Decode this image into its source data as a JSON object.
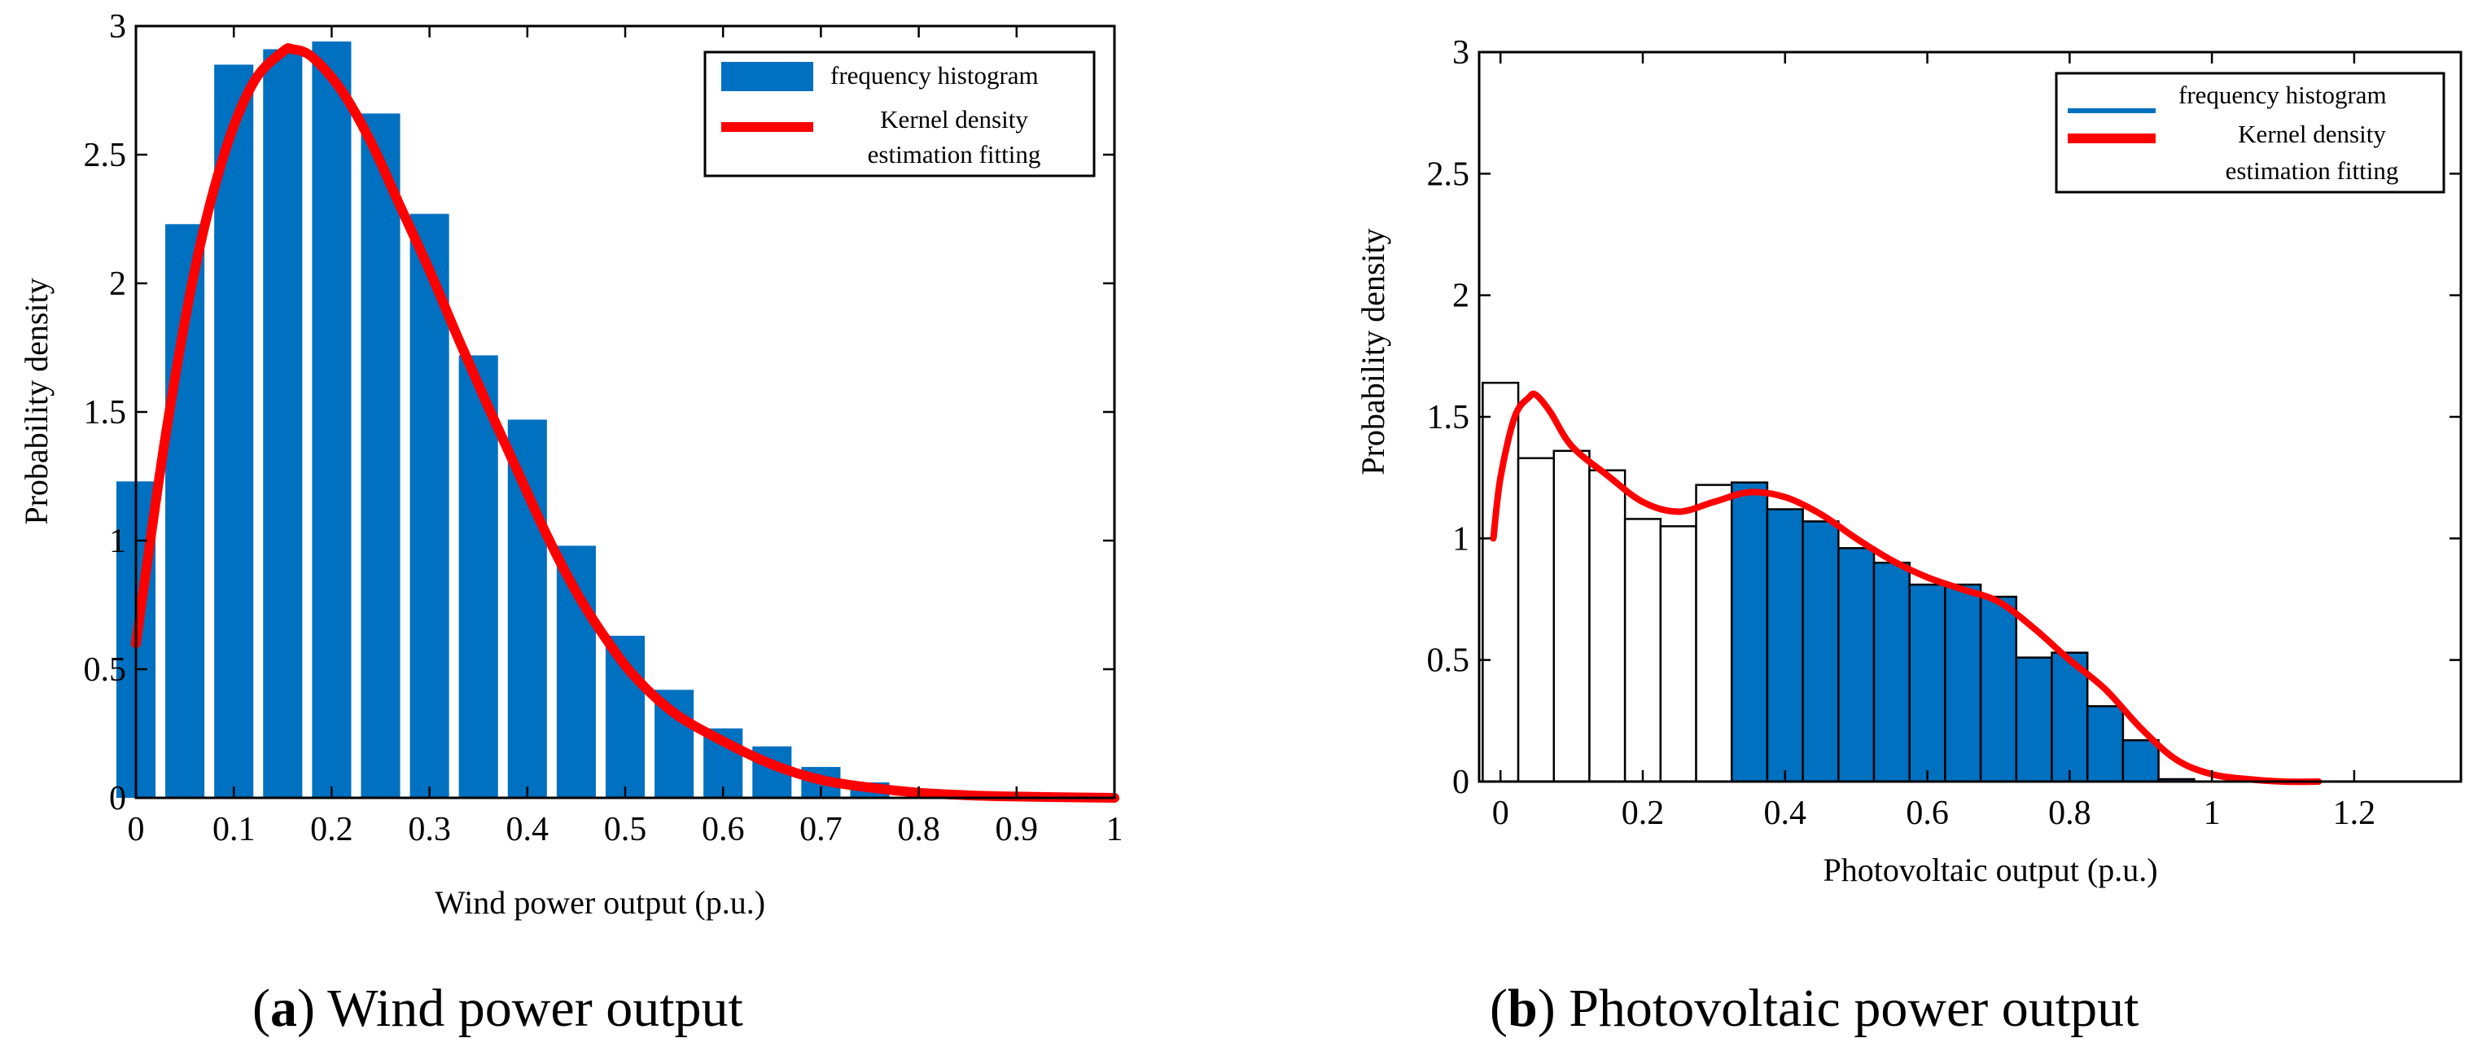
{
  "chart_data": [
    {
      "type": "bar",
      "panel_letter": "a",
      "caption": "Wind power output",
      "xlabel": "Wind power output (p.u.)",
      "ylabel": "Probability density",
      "xlim": [
        0,
        1
      ],
      "ylim": [
        0,
        3
      ],
      "xticks": [
        "0",
        "0.1",
        "0.2",
        "0.3",
        "0.4",
        "0.5",
        "0.6",
        "0.7",
        "0.8",
        "0.9",
        "1"
      ],
      "yticks": [
        "0",
        "0.5",
        "1",
        "1.5",
        "2",
        "2.5",
        "3"
      ],
      "legend": {
        "position": "top-right",
        "histogram_label": "frequency histogram",
        "kde_label_lines": [
          "Kernel density",
          "estimation fitting"
        ]
      },
      "bar_width": 0.04,
      "bars": [
        {
          "x": 0.0,
          "value": 1.23
        },
        {
          "x": 0.05,
          "value": 2.23
        },
        {
          "x": 0.1,
          "value": 2.85
        },
        {
          "x": 0.15,
          "value": 2.91
        },
        {
          "x": 0.2,
          "value": 2.94
        },
        {
          "x": 0.25,
          "value": 2.66
        },
        {
          "x": 0.3,
          "value": 2.27
        },
        {
          "x": 0.35,
          "value": 1.72
        },
        {
          "x": 0.4,
          "value": 1.47
        },
        {
          "x": 0.45,
          "value": 0.98
        },
        {
          "x": 0.5,
          "value": 0.63
        },
        {
          "x": 0.55,
          "value": 0.42
        },
        {
          "x": 0.6,
          "value": 0.27
        },
        {
          "x": 0.65,
          "value": 0.2
        },
        {
          "x": 0.7,
          "value": 0.12
        },
        {
          "x": 0.75,
          "value": 0.06
        }
      ],
      "kde": {
        "x": [
          0,
          0.03,
          0.06,
          0.09,
          0.12,
          0.15,
          0.16,
          0.18,
          0.21,
          0.24,
          0.27,
          0.3,
          0.33,
          0.36,
          0.39,
          0.42,
          0.45,
          0.48,
          0.51,
          0.55,
          0.6,
          0.65,
          0.7,
          0.75,
          0.8,
          0.85,
          0.9,
          1.0
        ],
        "y": [
          0.6,
          1.4,
          2.05,
          2.5,
          2.78,
          2.9,
          2.91,
          2.88,
          2.75,
          2.55,
          2.3,
          2.05,
          1.78,
          1.52,
          1.27,
          1.02,
          0.8,
          0.62,
          0.47,
          0.33,
          0.22,
          0.13,
          0.07,
          0.04,
          0.02,
          0.01,
          0.005,
          0.0
        ]
      },
      "colors": {
        "bar": "#0070C0",
        "kde": "#FF0000"
      }
    },
    {
      "type": "bar",
      "panel_letter": "b",
      "caption": "Photovoltaic power output",
      "xlabel": "Photovoltaic output (p.u.)",
      "ylabel": "Probability density",
      "xlim": [
        -0.03,
        1.35
      ],
      "ylim": [
        0,
        3
      ],
      "xticks": [
        "0",
        "0.2",
        "0.4",
        "0.6",
        "0.8",
        "1",
        "1.2"
      ],
      "yticks": [
        "0",
        "0.5",
        "1",
        "1.5",
        "2",
        "2.5",
        "3"
      ],
      "legend": {
        "position": "top-right",
        "histogram_label": "frequency histogram",
        "kde_label_lines": [
          "Kernel density",
          "estimation fitting"
        ]
      },
      "bar_width": 0.05,
      "bars": [
        {
          "x": 0.0,
          "value": 1.64,
          "filled": false
        },
        {
          "x": 0.05,
          "value": 1.33,
          "filled": false
        },
        {
          "x": 0.1,
          "value": 1.36,
          "filled": false
        },
        {
          "x": 0.15,
          "value": 1.28,
          "filled": false
        },
        {
          "x": 0.2,
          "value": 1.08,
          "filled": false
        },
        {
          "x": 0.25,
          "value": 1.05,
          "filled": false
        },
        {
          "x": 0.3,
          "value": 1.22,
          "filled": false
        },
        {
          "x": 0.35,
          "value": 1.23,
          "filled": true
        },
        {
          "x": 0.4,
          "value": 1.12,
          "filled": true
        },
        {
          "x": 0.45,
          "value": 1.07,
          "filled": true
        },
        {
          "x": 0.5,
          "value": 0.96,
          "filled": true
        },
        {
          "x": 0.55,
          "value": 0.9,
          "filled": true
        },
        {
          "x": 0.6,
          "value": 0.81,
          "filled": true
        },
        {
          "x": 0.65,
          "value": 0.81,
          "filled": true
        },
        {
          "x": 0.7,
          "value": 0.76,
          "filled": true
        },
        {
          "x": 0.75,
          "value": 0.51,
          "filled": true
        },
        {
          "x": 0.8,
          "value": 0.53,
          "filled": true
        },
        {
          "x": 0.85,
          "value": 0.31,
          "filled": true
        },
        {
          "x": 0.9,
          "value": 0.17,
          "filled": true
        },
        {
          "x": 0.95,
          "value": 0.01,
          "filled": true
        }
      ],
      "kde": {
        "x": [
          -0.01,
          0.0,
          0.02,
          0.04,
          0.05,
          0.07,
          0.1,
          0.15,
          0.2,
          0.25,
          0.3,
          0.35,
          0.4,
          0.45,
          0.5,
          0.55,
          0.6,
          0.65,
          0.7,
          0.75,
          0.8,
          0.85,
          0.9,
          0.95,
          1.0,
          1.05,
          1.1,
          1.15
        ],
        "y": [
          1.0,
          1.25,
          1.5,
          1.58,
          1.59,
          1.52,
          1.38,
          1.26,
          1.15,
          1.11,
          1.15,
          1.19,
          1.17,
          1.1,
          1.0,
          0.91,
          0.84,
          0.79,
          0.74,
          0.63,
          0.5,
          0.38,
          0.22,
          0.09,
          0.03,
          0.01,
          0.0,
          0.0
        ]
      },
      "colors": {
        "bar": "#0070C0",
        "bar_empty": "#FFFFFF",
        "kde": "#FF0000"
      }
    }
  ]
}
